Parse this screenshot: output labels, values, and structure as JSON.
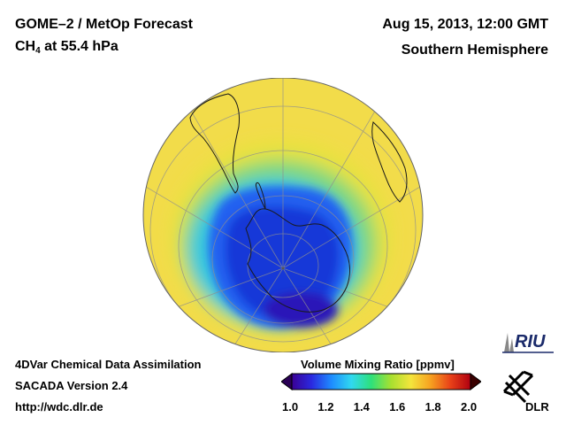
{
  "header": {
    "title": "GOME–2 / MetOp Forecast",
    "species_main": "CH",
    "species_sub": "4",
    "species_rest": " at 55.4 hPa",
    "datetime": "Aug 15, 2013, 12:00 GMT",
    "region": "Southern Hemisphere"
  },
  "footer": {
    "line1": "4DVar Chemical Data Assimilation",
    "line2": "SACADA Version 2.4",
    "line3": "http://wdc.dlr.de"
  },
  "colorbar": {
    "title": "Volume Mixing Ratio [ppmv]",
    "min": 1.0,
    "max": 2.0,
    "ticks": [
      "1.0",
      "1.2",
      "1.4",
      "1.6",
      "1.8",
      "2.0"
    ],
    "under_color": "#2a0055",
    "over_color": "#3a0000",
    "stops": [
      "#3a0096",
      "#2a2ae0",
      "#1e8cff",
      "#30d8f0",
      "#2ee07a",
      "#a8e030",
      "#f4e43c",
      "#f6a020",
      "#e84018",
      "#b00010"
    ]
  },
  "map": {
    "field_colors": {
      "background": "#f2dc4a",
      "ring_yellow": "#e8e23e",
      "ring_green": "#7ed87a",
      "ring_cyan": "#38c8e0",
      "vortex_blue": "#2060f0",
      "vortex_core": "#1838d8",
      "vortex_deep": "#2a18b8"
    },
    "min_value_region": "Antarctica",
    "background_value": 1.65
  },
  "logos": {
    "riu": "RIU",
    "dlr": "DLR"
  }
}
